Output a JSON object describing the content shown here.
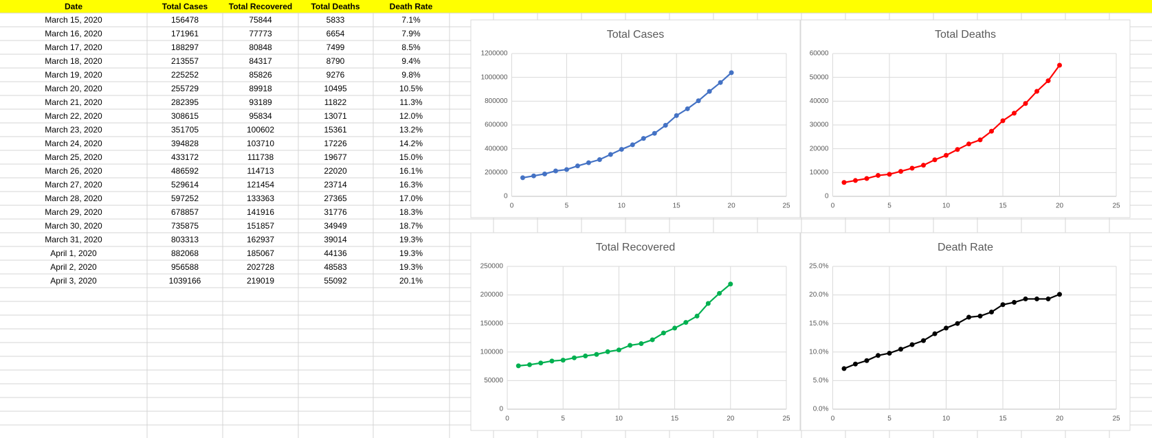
{
  "table": {
    "header": [
      "Date",
      "Total Cases",
      "Total Recovered",
      "Total Deaths",
      "Death Rate"
    ],
    "rows": [
      [
        "March 15, 2020",
        156478,
        75844,
        5833,
        "7.1%"
      ],
      [
        "March 16, 2020",
        171961,
        77773,
        6654,
        "7.9%"
      ],
      [
        "March 17, 2020",
        188297,
        80848,
        7499,
        "8.5%"
      ],
      [
        "March 18, 2020",
        213557,
        84317,
        8790,
        "9.4%"
      ],
      [
        "March 19, 2020",
        225252,
        85826,
        9276,
        "9.8%"
      ],
      [
        "March 20, 2020",
        255729,
        89918,
        10495,
        "10.5%"
      ],
      [
        "March 21, 2020",
        282395,
        93189,
        11822,
        "11.3%"
      ],
      [
        "March 22, 2020",
        308615,
        95834,
        13071,
        "12.0%"
      ],
      [
        "March 23, 2020",
        351705,
        100602,
        15361,
        "13.2%"
      ],
      [
        "March 24, 2020",
        394828,
        103710,
        17226,
        "14.2%"
      ],
      [
        "March 25, 2020",
        433172,
        111738,
        19677,
        "15.0%"
      ],
      [
        "March 26, 2020",
        486592,
        114713,
        22020,
        "16.1%"
      ],
      [
        "March 27, 2020",
        529614,
        121454,
        23714,
        "16.3%"
      ],
      [
        "March 28, 2020",
        597252,
        133363,
        27365,
        "17.0%"
      ],
      [
        "March 29, 2020",
        678857,
        141916,
        31776,
        "18.3%"
      ],
      [
        "March 30, 2020",
        735875,
        151857,
        34949,
        "18.7%"
      ],
      [
        "March 31, 2020",
        803313,
        162937,
        39014,
        "19.3%"
      ],
      [
        "April 1, 2020",
        882068,
        185067,
        44136,
        "19.3%"
      ],
      [
        "April 2, 2020",
        956588,
        202728,
        48583,
        "19.3%"
      ],
      [
        "April 3, 2020",
        1039166,
        219019,
        55092,
        "20.1%"
      ]
    ]
  },
  "chart_data": [
    {
      "type": "line",
      "title": "Total Cases",
      "color": "#4472c4",
      "grid": true,
      "x": [
        1,
        2,
        3,
        4,
        5,
        6,
        7,
        8,
        9,
        10,
        11,
        12,
        13,
        14,
        15,
        16,
        17,
        18,
        19,
        20
      ],
      "values": [
        156478,
        171961,
        188297,
        213557,
        225252,
        255729,
        282395,
        308615,
        351705,
        394828,
        433172,
        486592,
        529614,
        597252,
        678857,
        735875,
        803313,
        882068,
        956588,
        1039166
      ],
      "xlim": [
        0,
        25
      ],
      "xticks": [
        0,
        5,
        10,
        15,
        20,
        25
      ],
      "ylim": [
        0,
        1200000
      ],
      "yticks": [
        0,
        200000,
        400000,
        600000,
        800000,
        1000000,
        1200000
      ]
    },
    {
      "type": "line",
      "title": "Total Deaths",
      "color": "#ff0000",
      "grid": true,
      "x": [
        1,
        2,
        3,
        4,
        5,
        6,
        7,
        8,
        9,
        10,
        11,
        12,
        13,
        14,
        15,
        16,
        17,
        18,
        19,
        20
      ],
      "values": [
        5833,
        6654,
        7499,
        8790,
        9276,
        10495,
        11822,
        13071,
        15361,
        17226,
        19677,
        22020,
        23714,
        27365,
        31776,
        34949,
        39014,
        44136,
        48583,
        55092
      ],
      "xlim": [
        0,
        25
      ],
      "xticks": [
        0,
        5,
        10,
        15,
        20,
        25
      ],
      "ylim": [
        0,
        60000
      ],
      "yticks": [
        0,
        10000,
        20000,
        30000,
        40000,
        50000,
        60000
      ]
    },
    {
      "type": "line",
      "title": "Total Recovered",
      "color": "#00b050",
      "grid": true,
      "x": [
        1,
        2,
        3,
        4,
        5,
        6,
        7,
        8,
        9,
        10,
        11,
        12,
        13,
        14,
        15,
        16,
        17,
        18,
        19,
        20
      ],
      "values": [
        75844,
        77773,
        80848,
        84317,
        85826,
        89918,
        93189,
        95834,
        100602,
        103710,
        111738,
        114713,
        121454,
        133363,
        141916,
        151857,
        162937,
        185067,
        202728,
        219019
      ],
      "xlim": [
        0,
        25
      ],
      "xticks": [
        0,
        5,
        10,
        15,
        20,
        25
      ],
      "ylim": [
        0,
        250000
      ],
      "yticks": [
        0,
        50000,
        100000,
        150000,
        200000,
        250000
      ]
    },
    {
      "type": "line",
      "title": "Death Rate",
      "color": "#000000",
      "grid": true,
      "x": [
        1,
        2,
        3,
        4,
        5,
        6,
        7,
        8,
        9,
        10,
        11,
        12,
        13,
        14,
        15,
        16,
        17,
        18,
        19,
        20
      ],
      "values": [
        7.1,
        7.9,
        8.5,
        9.4,
        9.8,
        10.5,
        11.3,
        12.0,
        13.2,
        14.2,
        15.0,
        16.1,
        16.3,
        17.0,
        18.3,
        18.7,
        19.3,
        19.3,
        19.3,
        20.1
      ],
      "xlim": [
        0,
        25
      ],
      "xticks": [
        0,
        5,
        10,
        15,
        20,
        25
      ],
      "ylim": [
        0,
        25
      ],
      "yticks": [
        {
          "value": 0,
          "label": "0.0%"
        },
        {
          "value": 5,
          "label": "5.0%"
        },
        {
          "value": 10,
          "label": "10.0%"
        },
        {
          "value": 15,
          "label": "15.0%"
        },
        {
          "value": 20,
          "label": "20.0%"
        },
        {
          "value": 25,
          "label": "25.0%"
        }
      ]
    }
  ]
}
